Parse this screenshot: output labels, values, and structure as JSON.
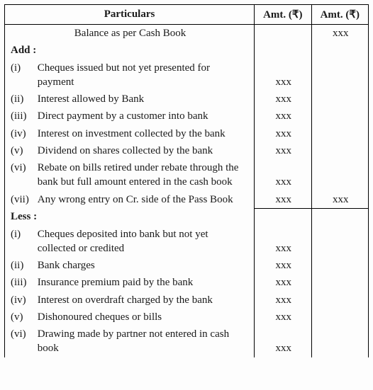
{
  "headers": {
    "particulars": "Particulars",
    "amt1": "Amt. (₹)",
    "amt2": "Amt. (₹)"
  },
  "balance_line": "Balance as per Cash Book",
  "balance_amt2": "xxx",
  "add_label": "Add :",
  "add_items": [
    {
      "n": "(i)",
      "text": "Cheques issued but not yet presented for payment",
      "amt": "xxx"
    },
    {
      "n": "(ii)",
      "text": "Interest allowed by Bank",
      "amt": "xxx"
    },
    {
      "n": "(iii)",
      "text": "Direct payment by a customer into bank",
      "amt": "xxx"
    },
    {
      "n": "(iv)",
      "text": "Interest on investment collected by the bank",
      "amt": "xxx"
    },
    {
      "n": "(v)",
      "text": "Dividend on shares collected by the bank",
      "amt": "xxx"
    },
    {
      "n": "(vi)",
      "text": "Rebate on bills retired under rebate through the bank but full amount entered in the cash book",
      "amt": "xxx"
    },
    {
      "n": "(vii)",
      "text": "Any wrong entry on Cr. side of the Pass Book",
      "amt": "xxx",
      "amt2": "xxx",
      "subtotal": true
    }
  ],
  "less_label": "Less :",
  "less_items": [
    {
      "n": "(i)",
      "text": "Cheques deposited into bank but not yet collected or credited",
      "amt": "xxx"
    },
    {
      "n": "(ii)",
      "text": "Bank charges",
      "amt": "xxx"
    },
    {
      "n": "(iii)",
      "text": "Insurance premium paid by the bank",
      "amt": "xxx"
    },
    {
      "n": "(iv)",
      "text": "Interest on overdraft charged by the bank",
      "amt": "xxx"
    },
    {
      "n": "(v)",
      "text": "Dishonoured cheques or bills",
      "amt": "xxx"
    },
    {
      "n": "(vi)",
      "text": "Drawing made by partner not entered in cash book",
      "amt": "xxx"
    }
  ]
}
